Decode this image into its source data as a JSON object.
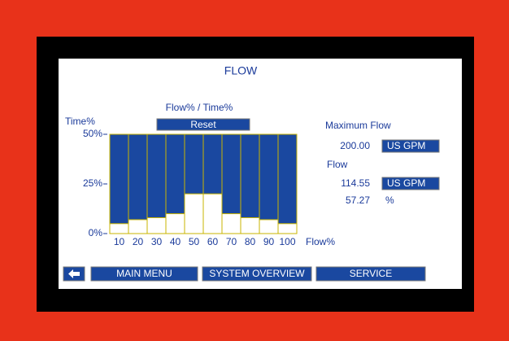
{
  "screen": {
    "reset": "Reset",
    "max_flow_label": "Maximum Flow",
    "max_flow_value": "200.00",
    "max_flow_unit": "US GPM",
    "flow_label": "Flow",
    "flow_value": "114.55",
    "flow_unit": "US GPM",
    "flow_percent": "57.27",
    "percent_unit": "%",
    "buttons": [
      "MAIN MENU",
      "SYSTEM OVERVIEW",
      "SERVICE"
    ]
  },
  "chart_data": {
    "type": "bar",
    "title": "FLOW",
    "subtitle": "Flow% / Time%",
    "y_label": "Time%",
    "x_label": "Flow%",
    "categories": [
      "10",
      "20",
      "30",
      "40",
      "50",
      "60",
      "70",
      "80",
      "90",
      "100"
    ],
    "values": [
      5,
      7,
      8,
      10,
      20,
      20,
      10,
      8,
      7,
      5
    ],
    "color": "#ffffff",
    "background_color": "#1a48a0",
    "outline_color": "#c8b400",
    "ylim": [
      0,
      50
    ],
    "yticks": [
      {
        "value": 0,
        "label": "0%"
      },
      {
        "value": 25,
        "label": "25%"
      },
      {
        "value": 50,
        "label": "50%"
      }
    ]
  }
}
